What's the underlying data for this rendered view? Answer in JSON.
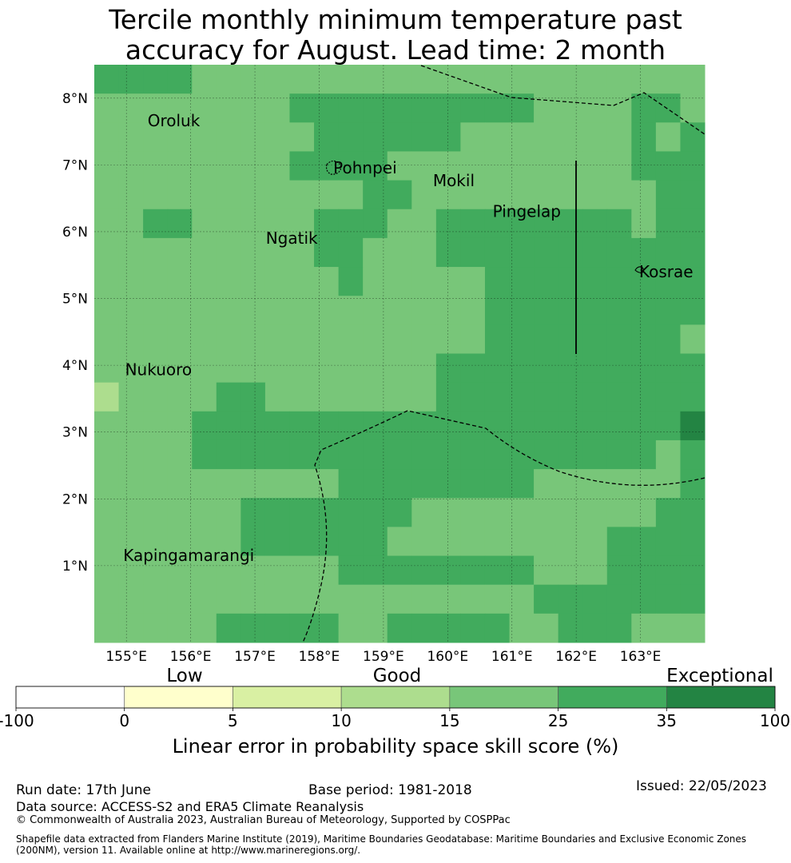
{
  "title_line1": "Tercile monthly minimum temperature past",
  "title_line2": "accuracy for August. Lead time: 2 month",
  "map": {
    "lon_min": 154.5,
    "lon_max": 164.0,
    "lat_min": -0.15,
    "lat_max": 8.5,
    "cell_size": 0.835,
    "lon_origin": 154.5,
    "lat_origin": 8.5,
    "lon_ticks": [
      {
        "value": 155,
        "label": "155°E"
      },
      {
        "value": 156,
        "label": "156°E"
      },
      {
        "value": 157,
        "label": "157°E"
      },
      {
        "value": 158,
        "label": "158°E"
      },
      {
        "value": 159,
        "label": "159°E"
      },
      {
        "value": 160,
        "label": "160°E"
      },
      {
        "value": 161,
        "label": "161°E"
      },
      {
        "value": 162,
        "label": "162°E"
      },
      {
        "value": 163,
        "label": "163°E"
      }
    ],
    "lat_ticks": [
      {
        "value": 8,
        "label": "8°N"
      },
      {
        "value": 7,
        "label": "7°N"
      },
      {
        "value": 6,
        "label": "6°N"
      },
      {
        "value": 5,
        "label": "5°N"
      },
      {
        "value": 4,
        "label": "4°N"
      },
      {
        "value": 3,
        "label": "3°N"
      },
      {
        "value": 2,
        "label": "2°N"
      },
      {
        "value": 1,
        "label": "1°N"
      }
    ],
    "category_colors": [
      "#ffffff",
      "#ffffcc",
      "#d9f0a3",
      "#addd8e",
      "#78c679",
      "#41ab5d",
      "#238443"
    ],
    "grid_categories": [
      "55444444444444444444444444454444444445454544444545444544444444",
      "4444444444555554444444444444",
      "4444444444555554444444444444",
      "444444444455555555554444444444"
    ],
    "places": [
      {
        "name": "Oroluk",
        "lon": 155.33,
        "lat": 7.58
      },
      {
        "name": "Pohnpei",
        "lon": 158.22,
        "lat": 6.87
      },
      {
        "name": "Mokil",
        "lon": 159.77,
        "lat": 6.68
      },
      {
        "name": "Pingelap",
        "lon": 160.7,
        "lat": 6.22
      },
      {
        "name": "Ngatik",
        "lon": 157.17,
        "lat": 5.82
      },
      {
        "name": "Kosrae",
        "lon": 162.98,
        "lat": 5.32
      },
      {
        "name": "Nukuoro",
        "lon": 154.98,
        "lat": 3.85
      },
      {
        "name": "Kapingamarangi",
        "lon": 154.95,
        "lat": 1.07
      }
    ]
  },
  "grid_rows": [
    "5555444444444444444444444",
    "4444444455555555554444554",
    "4444444445555554444444545",
    "4444444455554444444444555",
    "4444444444455444444444455",
    "4455444445554455555555455",
    "4444444445544455555555555",
    "4444444444544444555555555",
    "4444444444444444555555555",
    "4444444444444444555555554",
    "4444444444444455555555555",
    "3444455444444455555555555",
    "4444555555555555555555556",
    "4444555555555555555555545",
    "4444444444555555554444445",
    "4444445555555444444444455",
    "4444445555554444444445555",
    "4444444444555555554445555",
    "4444444444444444445555555",
    "4444455555445555544555444"
  ],
  "colorbar": {
    "tick_labels": [
      "-100",
      "0",
      "5",
      "10",
      "15",
      "25",
      "35",
      "100"
    ],
    "colors": [
      "#ffffff",
      "#ffffcc",
      "#d9f0a3",
      "#addd8e",
      "#78c679",
      "#41ab5d",
      "#238443"
    ],
    "category_low": "Low",
    "category_good": "Good",
    "category_exceptional": "Exceptional",
    "axis_label": "Linear error in probability space skill score (%)"
  },
  "footer": {
    "run_date": "Run date: 17th June",
    "base_period": "Base period: 1981-2018",
    "issued": "Issued: 22/05/2023",
    "data_source": "Data source: ACCESS-S2 and ERA5 Climate Reanalysis",
    "copyright": "© Commonwealth of Australia 2023, Australian Bureau of Meteorology, Supported by COSPPac",
    "shapefile_line1": "Shapefile data extracted from Flanders Marine Institute (2019), Maritime Boundaries Geodatabase: Maritime Boundaries and Exclusive Economic Zones",
    "shapefile_line2": "(200NM), version 11. Available online at http://www.marineregions.org/."
  }
}
